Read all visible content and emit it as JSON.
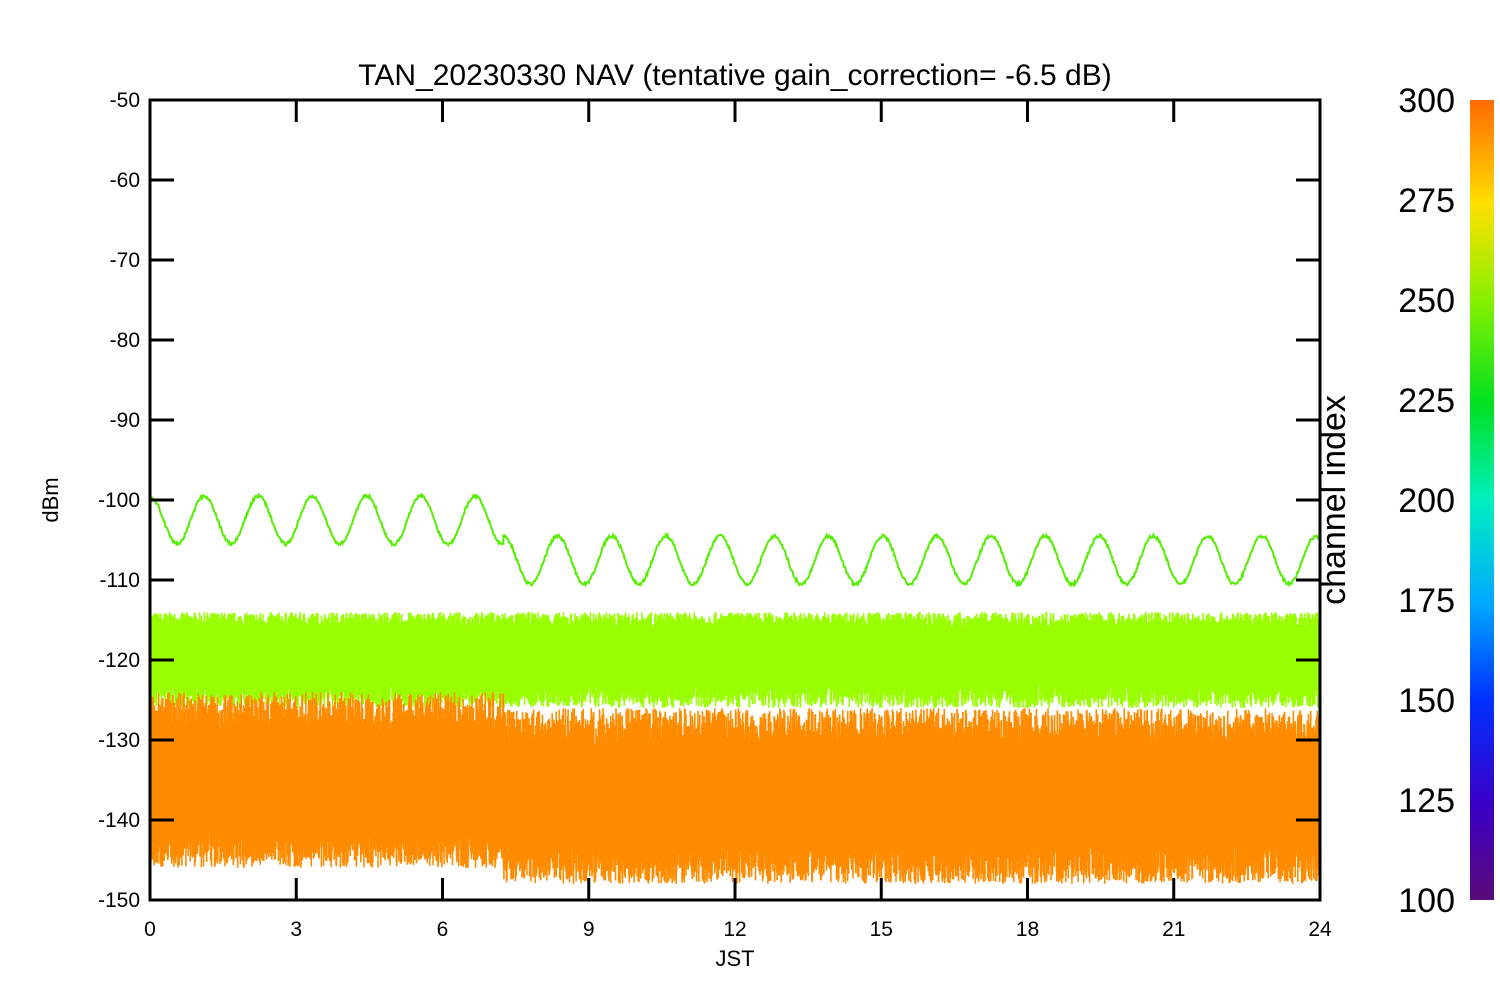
{
  "chart_data": {
    "type": "line",
    "title": "TAN_20230330 NAV (tentative gain_correction= -6.5 dB)",
    "xlabel": "JST",
    "ylabel": "dBm",
    "xlim": [
      0,
      24
    ],
    "ylim": [
      -150,
      -50
    ],
    "x_ticks": [
      "0",
      "3",
      "6",
      "9",
      "12",
      "15",
      "18",
      "21",
      "24"
    ],
    "y_ticks": [
      "-50",
      "-60",
      "-70",
      "-80",
      "-90",
      "-100",
      "-110",
      "-120",
      "-130",
      "-140",
      "-150"
    ],
    "grid": false,
    "colorbar": {
      "label": "channel index",
      "range": [
        100,
        300
      ],
      "ticks": [
        "300",
        "275",
        "250",
        "225",
        "200",
        "175",
        "150",
        "125",
        "100"
      ],
      "colormap": "rainbow (purple to orange-red)"
    },
    "series": [
      {
        "color": "#55ee00",
        "channel_index": 245,
        "description_pattern": "sinusoidal oscillation, period about 1 h",
        "segments": [
          {
            "x": [
              0,
              7.25
            ],
            "center": -102.5,
            "amplitude": 3
          },
          {
            "x": [
              7.25,
              24
            ],
            "center": -107.5,
            "amplitude": 3
          }
        ]
      },
      {
        "color": "#99ff00",
        "channel_index": 255,
        "band": {
          "x": [
            0,
            24
          ],
          "center": -119,
          "min": -126,
          "max": -114
        }
      },
      {
        "color": "#ff8c00",
        "channel_index": 295,
        "bands": [
          {
            "x": [
              0,
              7.25
            ],
            "center": -136,
            "min": -146,
            "max": -124
          },
          {
            "x": [
              7.25,
              24
            ],
            "center": -137,
            "min": -148,
            "max": -126
          }
        ]
      }
    ],
    "colors": {
      "nav_line": "#55ee00",
      "green_band": "#99ff00",
      "orange_band": "#ff8c00"
    }
  }
}
